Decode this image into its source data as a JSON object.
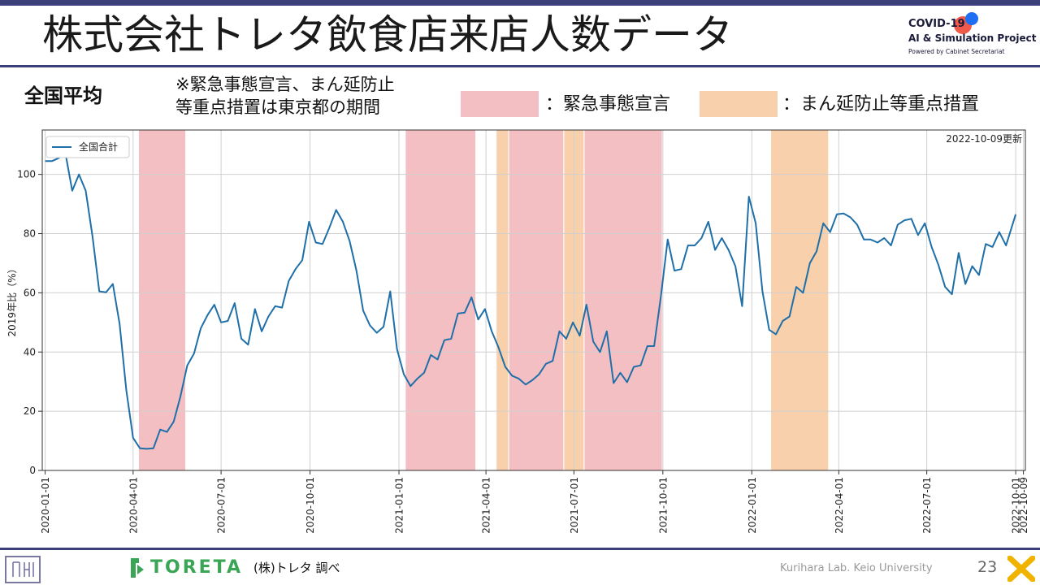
{
  "title": "株式会社トレタ飲食店来店人数データ",
  "logo": {
    "line1": "COVID-19",
    "line2": "AI & Simulation Project",
    "line3": "Powered by Cabinet Secretariat"
  },
  "region_label": "全国平均",
  "note_lines": [
    "※緊急事態宣言、まん延防止",
    "等重点措置は東京都の期間"
  ],
  "period_legend": {
    "emergency_label": "：緊急事態宣言",
    "priority_label": "：まん延防止等重点措置",
    "emergency_color": "#f4bfc2",
    "priority_color": "#f8d0ab"
  },
  "chart_data": {
    "type": "line",
    "ylabel": "2019年比（%）",
    "ylim": [
      0,
      115
    ],
    "yticks": [
      0,
      20,
      40,
      60,
      80,
      100
    ],
    "xlim": [
      "2019-12-29",
      "2022-10-11"
    ],
    "xticks": [
      "2020-01-01",
      "2020-04-01",
      "2020-07-01",
      "2020-10-01",
      "2021-01-01",
      "2021-04-01",
      "2021-07-01",
      "2021-10-01",
      "2022-01-01",
      "2022-04-01",
      "2022-07-01",
      "2022-10-01",
      "2022-10-09"
    ],
    "grid": "x-and-y",
    "update_label": "2022-10-09更新",
    "legend_position": "top-left",
    "series": [
      {
        "name": "全国合計",
        "color": "#1f6fa8",
        "points": [
          [
            "2020-01-01",
            104.5
          ],
          [
            "2020-01-08",
            104.5
          ],
          [
            "2020-01-15",
            105.5
          ],
          [
            "2020-01-22",
            107
          ],
          [
            "2020-01-29",
            94.5
          ],
          [
            "2020-02-05",
            100
          ],
          [
            "2020-02-12",
            94.5
          ],
          [
            "2020-02-19",
            79
          ],
          [
            "2020-02-26",
            60.5
          ],
          [
            "2020-03-04",
            60.2
          ],
          [
            "2020-03-11",
            63
          ],
          [
            "2020-03-18",
            49.5
          ],
          [
            "2020-03-25",
            27
          ],
          [
            "2020-04-01",
            11
          ],
          [
            "2020-04-08",
            7.5
          ],
          [
            "2020-04-15",
            7.3
          ],
          [
            "2020-04-22",
            7.5
          ],
          [
            "2020-04-29",
            13.8
          ],
          [
            "2020-05-06",
            13
          ],
          [
            "2020-05-13",
            16.5
          ],
          [
            "2020-05-20",
            25
          ],
          [
            "2020-05-27",
            35.5
          ],
          [
            "2020-06-03",
            39.5
          ],
          [
            "2020-06-10",
            48
          ],
          [
            "2020-06-17",
            52.5
          ],
          [
            "2020-06-24",
            56
          ],
          [
            "2020-07-01",
            50
          ],
          [
            "2020-07-08",
            50.5
          ],
          [
            "2020-07-15",
            56.5
          ],
          [
            "2020-07-22",
            44.5
          ],
          [
            "2020-07-29",
            42.5
          ],
          [
            "2020-08-05",
            54.5
          ],
          [
            "2020-08-12",
            47
          ],
          [
            "2020-08-19",
            52
          ],
          [
            "2020-08-26",
            55.5
          ],
          [
            "2020-09-02",
            55
          ],
          [
            "2020-09-09",
            64
          ],
          [
            "2020-09-16",
            68
          ],
          [
            "2020-09-23",
            71
          ],
          [
            "2020-09-30",
            84
          ],
          [
            "2020-10-07",
            77
          ],
          [
            "2020-10-14",
            76.5
          ],
          [
            "2020-10-21",
            82
          ],
          [
            "2020-10-28",
            88
          ],
          [
            "2020-11-04",
            84
          ],
          [
            "2020-11-11",
            77.5
          ],
          [
            "2020-11-18",
            67.5
          ],
          [
            "2020-11-25",
            54
          ],
          [
            "2020-12-02",
            49
          ],
          [
            "2020-12-09",
            46.5
          ],
          [
            "2020-12-16",
            48.5
          ],
          [
            "2020-12-23",
            60.5
          ],
          [
            "2020-12-30",
            41
          ],
          [
            "2021-01-06",
            32.5
          ],
          [
            "2021-01-13",
            28.5
          ],
          [
            "2021-01-20",
            31
          ],
          [
            "2021-01-27",
            33
          ],
          [
            "2021-02-03",
            39
          ],
          [
            "2021-02-10",
            37.5
          ],
          [
            "2021-02-17",
            44
          ],
          [
            "2021-02-24",
            44.5
          ],
          [
            "2021-03-03",
            53
          ],
          [
            "2021-03-10",
            53.3
          ],
          [
            "2021-03-17",
            58.5
          ],
          [
            "2021-03-24",
            51
          ],
          [
            "2021-03-31",
            54.5
          ],
          [
            "2021-04-07",
            47
          ],
          [
            "2021-04-14",
            41.5
          ],
          [
            "2021-04-21",
            35
          ],
          [
            "2021-04-28",
            32
          ],
          [
            "2021-05-05",
            31
          ],
          [
            "2021-05-12",
            29
          ],
          [
            "2021-05-19",
            30.5
          ],
          [
            "2021-05-26",
            32.5
          ],
          [
            "2021-06-02",
            36
          ],
          [
            "2021-06-09",
            37
          ],
          [
            "2021-06-16",
            47
          ],
          [
            "2021-06-23",
            44.5
          ],
          [
            "2021-06-30",
            50
          ],
          [
            "2021-07-07",
            45.5
          ],
          [
            "2021-07-14",
            56
          ],
          [
            "2021-07-21",
            43.5
          ],
          [
            "2021-07-28",
            40
          ],
          [
            "2021-08-04",
            47
          ],
          [
            "2021-08-11",
            29.5
          ],
          [
            "2021-08-18",
            33
          ],
          [
            "2021-08-25",
            29.8
          ],
          [
            "2021-09-01",
            35
          ],
          [
            "2021-09-08",
            35.5
          ],
          [
            "2021-09-15",
            42
          ],
          [
            "2021-09-22",
            42
          ],
          [
            "2021-09-29",
            59
          ],
          [
            "2021-10-06",
            78
          ],
          [
            "2021-10-13",
            67.5
          ],
          [
            "2021-10-20",
            68
          ],
          [
            "2021-10-27",
            76
          ],
          [
            "2021-11-03",
            76
          ],
          [
            "2021-11-10",
            78.5
          ],
          [
            "2021-11-17",
            84
          ],
          [
            "2021-11-24",
            74.5
          ],
          [
            "2021-12-01",
            78.5
          ],
          [
            "2021-12-08",
            74.5
          ],
          [
            "2021-12-15",
            69
          ],
          [
            "2021-12-22",
            55.5
          ],
          [
            "2021-12-29",
            92.5
          ],
          [
            "2022-01-05",
            83.5
          ],
          [
            "2022-01-12",
            60.5
          ],
          [
            "2022-01-19",
            47.5
          ],
          [
            "2022-01-26",
            46
          ],
          [
            "2022-02-02",
            50.5
          ],
          [
            "2022-02-09",
            52
          ],
          [
            "2022-02-16",
            62
          ],
          [
            "2022-02-23",
            60
          ],
          [
            "2022-03-02",
            70
          ],
          [
            "2022-03-09",
            74
          ],
          [
            "2022-03-16",
            83.5
          ],
          [
            "2022-03-23",
            80.5
          ],
          [
            "2022-03-30",
            86.5
          ],
          [
            "2022-04-06",
            86.8
          ],
          [
            "2022-04-13",
            85.5
          ],
          [
            "2022-04-20",
            83
          ],
          [
            "2022-04-27",
            78
          ],
          [
            "2022-05-04",
            78
          ],
          [
            "2022-05-11",
            77
          ],
          [
            "2022-05-18",
            78.5
          ],
          [
            "2022-05-25",
            76
          ],
          [
            "2022-06-01",
            83
          ],
          [
            "2022-06-08",
            84.5
          ],
          [
            "2022-06-15",
            85
          ],
          [
            "2022-06-22",
            79.5
          ],
          [
            "2022-06-29",
            83.5
          ],
          [
            "2022-07-06",
            75.5
          ],
          [
            "2022-07-13",
            69.5
          ],
          [
            "2022-07-20",
            62
          ],
          [
            "2022-07-27",
            59.5
          ],
          [
            "2022-08-03",
            73.5
          ],
          [
            "2022-08-10",
            63
          ],
          [
            "2022-08-17",
            69
          ],
          [
            "2022-08-24",
            66
          ],
          [
            "2022-08-31",
            76.5
          ],
          [
            "2022-09-07",
            75.5
          ],
          [
            "2022-09-14",
            80.5
          ],
          [
            "2022-09-21",
            76
          ],
          [
            "2022-10-01",
            86.5
          ]
        ]
      }
    ],
    "shaded_periods": [
      {
        "type": "emergency",
        "start": "2020-04-07",
        "end": "2020-05-25"
      },
      {
        "type": "emergency",
        "start": "2021-01-08",
        "end": "2021-03-21"
      },
      {
        "type": "priority",
        "start": "2021-04-12",
        "end": "2021-04-24"
      },
      {
        "type": "emergency",
        "start": "2021-04-25",
        "end": "2021-06-20"
      },
      {
        "type": "priority",
        "start": "2021-06-21",
        "end": "2021-07-11"
      },
      {
        "type": "emergency",
        "start": "2021-07-12",
        "end": "2021-09-30"
      },
      {
        "type": "priority",
        "start": "2022-01-21",
        "end": "2022-03-21"
      }
    ]
  },
  "footer": {
    "toreta_brand": "TORETA",
    "source": "(株)トレタ 調べ",
    "lab": "Kurihara Lab. Keio University",
    "page_number": "23"
  }
}
